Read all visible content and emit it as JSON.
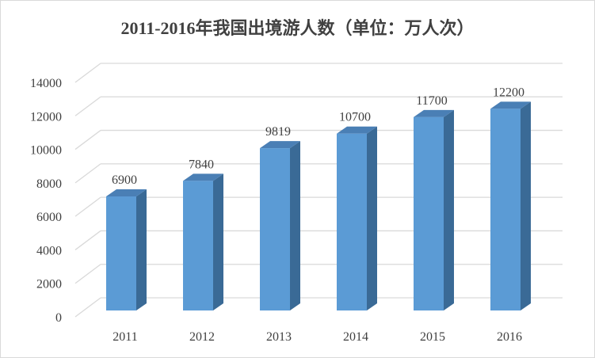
{
  "chart_data": {
    "type": "bar",
    "title": "2011-2016年我国出境游人数（单位：万人次）",
    "categories": [
      "2011",
      "2012",
      "2013",
      "2014",
      "2015",
      "2016"
    ],
    "values": [
      6900,
      7840,
      9819,
      10700,
      11700,
      12200
    ],
    "data_labels": [
      "6900",
      "7840",
      "9819",
      "10700",
      "11700",
      "12200"
    ],
    "ylim": [
      0,
      14000
    ],
    "yticks": [
      "0",
      "2000",
      "4000",
      "6000",
      "8000",
      "10000",
      "12000",
      "14000"
    ],
    "xlabel": "",
    "ylabel": "",
    "grid": true,
    "style": "3d-column",
    "colors": {
      "front": "#5b9bd5",
      "side": "#3a6a96",
      "top": "#4a7fb5",
      "grid": "#d9d9d9"
    }
  }
}
